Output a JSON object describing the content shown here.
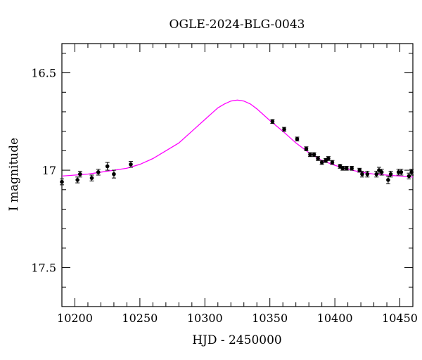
{
  "chart_data": {
    "type": "scatter",
    "title": "OGLE-2024-BLG-0043",
    "xlabel": "HJD - 2450000",
    "ylabel": "I magnitude",
    "xlim": [
      10190,
      10460
    ],
    "ylim": [
      17.7,
      16.35
    ],
    "y_inverted": true,
    "x_ticks": [
      10200,
      10250,
      10300,
      10350,
      10400,
      10450
    ],
    "x_tick_labels": [
      "10200",
      "10250",
      "10300",
      "10350",
      "10400",
      "10450"
    ],
    "y_ticks": [
      16.5,
      17,
      17.5
    ],
    "y_tick_labels": [
      "16.5",
      "17",
      "17.5"
    ],
    "grid": false,
    "colors": {
      "points": "#000000",
      "model": "#ff00ff"
    },
    "series": [
      {
        "kind": "points",
        "x": [
          10190,
          10202,
          10204,
          10213,
          10218,
          10225,
          10230,
          10243,
          10352,
          10361,
          10371,
          10378,
          10381,
          10384,
          10387,
          10390,
          10393,
          10395,
          10398,
          10404,
          10406,
          10409,
          10413,
          10419,
          10421,
          10425,
          10432,
          10434,
          10436,
          10441,
          10443,
          10449,
          10451,
          10457,
          10459
        ],
        "y": [
          17.06,
          17.05,
          17.02,
          17.04,
          17.01,
          16.98,
          17.02,
          16.97,
          16.75,
          16.79,
          16.84,
          16.89,
          16.92,
          16.92,
          16.94,
          16.96,
          16.95,
          16.94,
          16.96,
          16.98,
          16.99,
          16.99,
          16.99,
          17.0,
          17.02,
          17.02,
          17.02,
          17.0,
          17.01,
          17.05,
          17.02,
          17.01,
          17.01,
          17.03,
          17.01
        ],
        "err": [
          0.015,
          0.015,
          0.015,
          0.015,
          0.015,
          0.02,
          0.02,
          0.015,
          0.01,
          0.01,
          0.01,
          0.01,
          0.01,
          0.01,
          0.01,
          0.01,
          0.01,
          0.01,
          0.01,
          0.01,
          0.01,
          0.01,
          0.01,
          0.01,
          0.015,
          0.015,
          0.015,
          0.015,
          0.015,
          0.02,
          0.015,
          0.015,
          0.015,
          0.015,
          0.015
        ]
      },
      {
        "kind": "model",
        "x": [
          10190,
          10200,
          10210,
          10220,
          10230,
          10240,
          10250,
          10260,
          10270,
          10280,
          10290,
          10300,
          10305,
          10310,
          10315,
          10320,
          10325,
          10330,
          10335,
          10340,
          10345,
          10350,
          10360,
          10370,
          10380,
          10390,
          10400,
          10410,
          10420,
          10430,
          10440,
          10450,
          10460
        ],
        "y": [
          17.03,
          17.025,
          17.02,
          17.01,
          17.0,
          16.99,
          16.97,
          16.94,
          16.9,
          16.86,
          16.8,
          16.74,
          16.71,
          16.68,
          16.66,
          16.645,
          16.64,
          16.645,
          16.66,
          16.685,
          16.715,
          16.745,
          16.8,
          16.86,
          16.91,
          16.95,
          16.975,
          16.995,
          17.01,
          17.02,
          17.025,
          17.03,
          17.035
        ]
      }
    ]
  }
}
